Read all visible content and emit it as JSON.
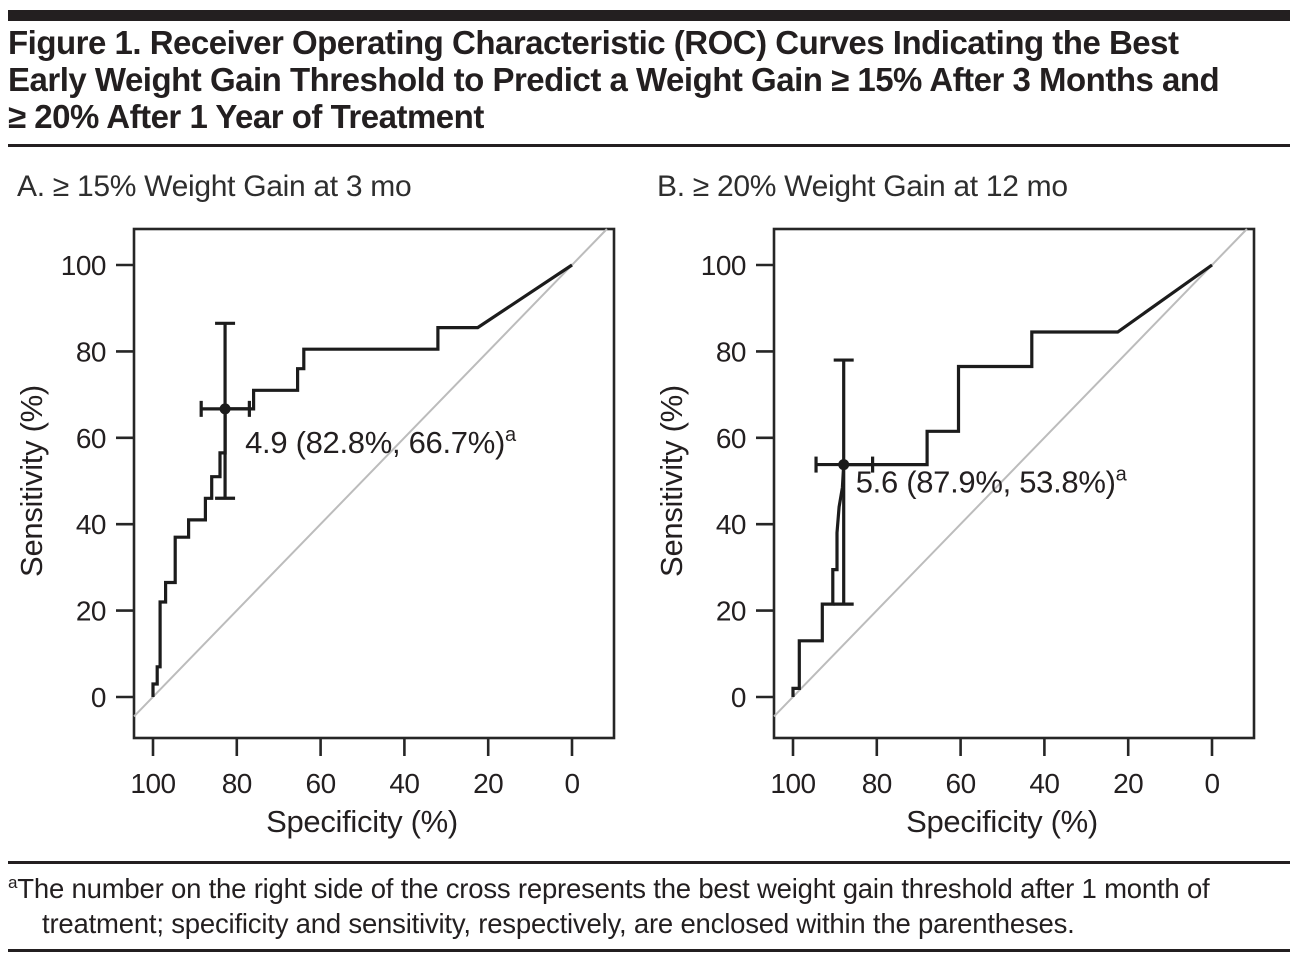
{
  "figure": {
    "title": "Figure 1. Receiver Operating Characteristic (ROC) Curves Indicating the Best\nEarly Weight Gain Threshold to Predict a Weight Gain ≥ 15% After 3 Months and\n≥ 20% After 1 Year of Treatment",
    "footnote_marker": "a",
    "footnote": "The number on the right side of the cross represents the best weight gain threshold after 1 month of treatment; specificity and sensitivity, respectively, are enclosed within the parentheses.",
    "colors": {
      "ink": "#231f20",
      "curve": "#1c1c1c",
      "reference_line": "#bcbcbc"
    }
  },
  "chart_data": [
    {
      "type": "line",
      "panel": "A",
      "title": "A. ≥ 15% Weight Gain at 3 mo",
      "xlabel": "Specificity (%)",
      "ylabel": "Sensitivity (%)",
      "x_reversed": true,
      "xlim": [
        100,
        0
      ],
      "ylim": [
        0,
        100
      ],
      "x_ticks": [
        100,
        80,
        60,
        40,
        20,
        0
      ],
      "y_ticks": [
        0,
        20,
        40,
        60,
        80,
        100
      ],
      "grid": false,
      "reference_line": "chance diagonal from (100,0) to (0,100)",
      "roc_points": [
        [
          100,
          0
        ],
        [
          100,
          3
        ],
        [
          99,
          3
        ],
        [
          99,
          7
        ],
        [
          98.3,
          7
        ],
        [
          98.3,
          22
        ],
        [
          97,
          22
        ],
        [
          97,
          26.5
        ],
        [
          94.7,
          26.5
        ],
        [
          94.7,
          37
        ],
        [
          91.5,
          37
        ],
        [
          91.5,
          41
        ],
        [
          87.5,
          41
        ],
        [
          87.5,
          46
        ],
        [
          86,
          46
        ],
        [
          86,
          51
        ],
        [
          84,
          51
        ],
        [
          84,
          56.5
        ],
        [
          82.8,
          56.5
        ],
        [
          82.8,
          66.7
        ],
        [
          76,
          66.7
        ],
        [
          76,
          71
        ],
        [
          65.5,
          71
        ],
        [
          65.5,
          76
        ],
        [
          64,
          76
        ],
        [
          64,
          80.5
        ],
        [
          32,
          80.5
        ],
        [
          32,
          85.5
        ],
        [
          22.5,
          85.5
        ],
        [
          0,
          100
        ]
      ],
      "cutpoint": {
        "threshold": "4.9",
        "specificity": 82.8,
        "sensitivity": 66.7,
        "label": "4.9 (82.8%, 66.7%)",
        "label_sup": "a",
        "ci_sensitivity": [
          46,
          86.5
        ],
        "ci_specificity": [
          88.5,
          77
        ]
      }
    },
    {
      "type": "line",
      "panel": "B",
      "title": "B. ≥ 20% Weight Gain at 12 mo",
      "xlabel": "Specificity (%)",
      "ylabel": "Sensitivity (%)",
      "x_reversed": true,
      "xlim": [
        100,
        0
      ],
      "ylim": [
        0,
        100
      ],
      "x_ticks": [
        100,
        80,
        60,
        40,
        20,
        0
      ],
      "y_ticks": [
        0,
        20,
        40,
        60,
        80,
        100
      ],
      "grid": false,
      "reference_line": "chance diagonal from (100,0) to (0,100)",
      "roc_points": [
        [
          100,
          0
        ],
        [
          100,
          2
        ],
        [
          98.5,
          2
        ],
        [
          98.5,
          13
        ],
        [
          93,
          13
        ],
        [
          93,
          21.5
        ],
        [
          90.5,
          21.5
        ],
        [
          90.5,
          29.5
        ],
        [
          89.5,
          29.5
        ],
        [
          89.5,
          38
        ],
        [
          89,
          44
        ],
        [
          88.2,
          48.5
        ],
        [
          87.9,
          53.8
        ],
        [
          68,
          53.8
        ],
        [
          68,
          61.5
        ],
        [
          60.5,
          61.5
        ],
        [
          60.5,
          76.5
        ],
        [
          43,
          76.5
        ],
        [
          43,
          84.5
        ],
        [
          22.5,
          84.5
        ],
        [
          0,
          100
        ]
      ],
      "cutpoint": {
        "threshold": "5.6",
        "specificity": 87.9,
        "sensitivity": 53.8,
        "label": "5.6 (87.9%, 53.8%)",
        "label_sup": "a",
        "ci_sensitivity": [
          21.5,
          78
        ],
        "ci_specificity": [
          94.5,
          81
        ]
      }
    }
  ]
}
